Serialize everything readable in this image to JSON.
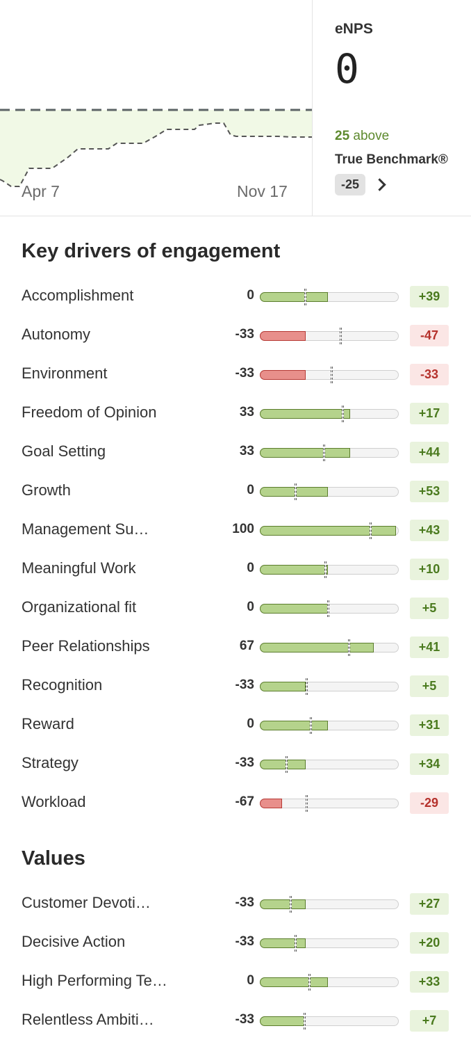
{
  "trend": {
    "start_label": "Apr 7",
    "end_label": "Nov 17"
  },
  "enps": {
    "label": "eNPS",
    "value": "0",
    "above_count": "25",
    "above_text": "above",
    "benchmark_label": "True Benchmark®",
    "benchmark_value": "-25"
  },
  "drivers": {
    "title": "Key drivers of engagement",
    "items": [
      {
        "name": "Accomplishment",
        "score": 0,
        "score_text": "0",
        "benchmark": -36,
        "delta": "+39",
        "positive": true
      },
      {
        "name": "Autonomy",
        "score": -33,
        "score_text": "-33",
        "benchmark": 16,
        "delta": "-47",
        "positive": false
      },
      {
        "name": "Environment",
        "score": -33,
        "score_text": "-33",
        "benchmark": 3,
        "delta": "-33",
        "positive": false
      },
      {
        "name": "Freedom of Opinion",
        "score": 33,
        "score_text": "33",
        "benchmark": 19,
        "delta": "+17",
        "positive": true
      },
      {
        "name": "Goal Setting",
        "score": 33,
        "score_text": "33",
        "benchmark": -8,
        "delta": "+44",
        "positive": true
      },
      {
        "name": "Growth",
        "score": 0,
        "score_text": "0",
        "benchmark": -50,
        "delta": "+53",
        "positive": true
      },
      {
        "name": "Management Su…",
        "score": 100,
        "score_text": "100",
        "benchmark": 60,
        "delta": "+43",
        "positive": true
      },
      {
        "name": "Meaningful Work",
        "score": 0,
        "score_text": "0",
        "benchmark": -6,
        "delta": "+10",
        "positive": true
      },
      {
        "name": "Organizational fit",
        "score": 0,
        "score_text": "0",
        "benchmark": -2,
        "delta": "+5",
        "positive": true
      },
      {
        "name": "Peer Relationships",
        "score": 67,
        "score_text": "67",
        "benchmark": 29,
        "delta": "+41",
        "positive": true
      },
      {
        "name": "Recognition",
        "score": -33,
        "score_text": "-33",
        "benchmark": -34,
        "delta": "+5",
        "positive": true
      },
      {
        "name": "Reward",
        "score": 0,
        "score_text": "0",
        "benchmark": -28,
        "delta": "+31",
        "positive": true
      },
      {
        "name": "Strategy",
        "score": -33,
        "score_text": "-33",
        "benchmark": -63,
        "delta": "+34",
        "positive": true
      },
      {
        "name": "Workload",
        "score": -67,
        "score_text": "-67",
        "benchmark": -34,
        "delta": "-29",
        "positive": false
      }
    ]
  },
  "values": {
    "title": "Values",
    "items": [
      {
        "name": "Customer Devoti…",
        "score": -33,
        "score_text": "-33",
        "benchmark": -57,
        "delta": "+27",
        "positive": true
      },
      {
        "name": "Decisive Action",
        "score": -33,
        "score_text": "-33",
        "benchmark": -50,
        "delta": "+20",
        "positive": true
      },
      {
        "name": "High Performing Te…",
        "score": 0,
        "score_text": "0",
        "benchmark": -30,
        "delta": "+33",
        "positive": true
      },
      {
        "name": "Relentless Ambiti…",
        "score": -33,
        "score_text": "-33",
        "benchmark": -37,
        "delta": "+7",
        "positive": true
      }
    ]
  },
  "colors": {
    "positive_fill": "#b5d38c",
    "positive_border": "#5b7d2c",
    "negative_fill": "#e88f8b",
    "negative_border": "#b63a35",
    "above_text": "#5e8a2e"
  }
}
